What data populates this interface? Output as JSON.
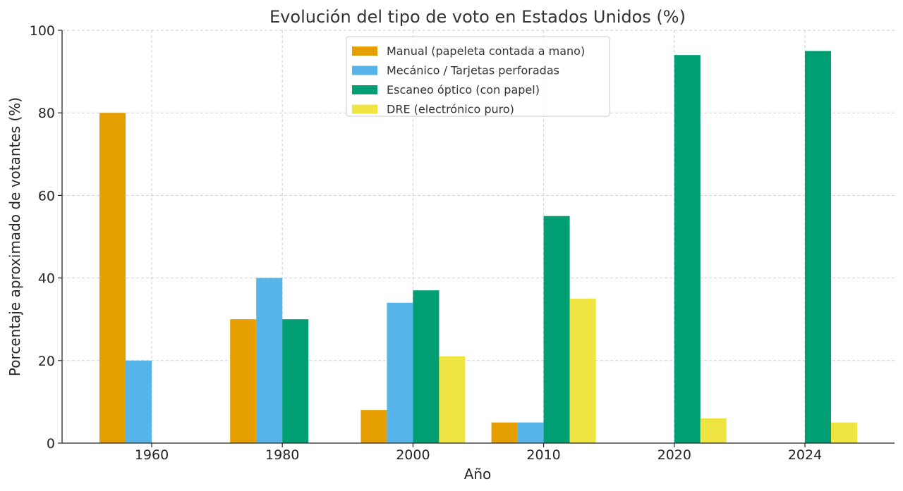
{
  "chart_data": {
    "type": "bar",
    "title": "Evolución del tipo de voto en Estados Unidos (%)",
    "xlabel": "Año",
    "ylabel": "Porcentaje aproximado de votantes (%)",
    "categories": [
      "1960",
      "1980",
      "2000",
      "2010",
      "2020",
      "2024"
    ],
    "ylim": [
      0,
      100
    ],
    "yticks": [
      0,
      20,
      40,
      60,
      80,
      100
    ],
    "grid": true,
    "legend_position": "top-center",
    "series": [
      {
        "name": "Manual (papeleta contada a mano)",
        "color": "#E69F00",
        "values": [
          80,
          30,
          8,
          5,
          0,
          0
        ]
      },
      {
        "name": "Mecánico / Tarjetas perforadas",
        "color": "#56B4E9",
        "values": [
          20,
          40,
          34,
          5,
          0,
          0
        ]
      },
      {
        "name": "Escaneo óptico (con papel)",
        "color": "#009E73",
        "values": [
          0,
          30,
          37,
          55,
          94,
          95
        ]
      },
      {
        "name": "DRE (electrónico puro)",
        "color": "#F0E442",
        "values": [
          0,
          0,
          21,
          35,
          6,
          5
        ]
      }
    ]
  }
}
